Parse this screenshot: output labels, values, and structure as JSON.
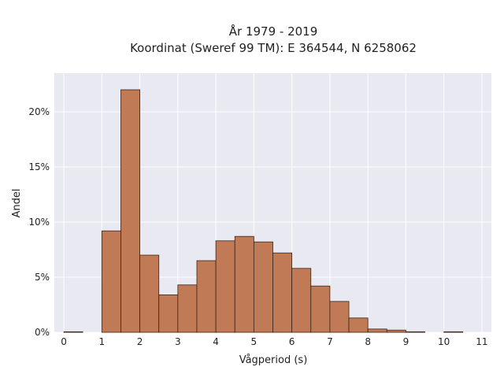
{
  "chart_data": {
    "type": "bar",
    "title": "År 1979 - 2019",
    "subtitle": "Koordinat (Sweref 99 TM): E 364544, N 6258062",
    "xlabel": "Vågperiod (s)",
    "ylabel": "Andel",
    "bin_width": 0.5,
    "bin_starts": [
      0,
      0.5,
      1,
      1.5,
      2,
      2.5,
      3,
      3.5,
      4,
      4.5,
      5,
      5.5,
      6,
      6.5,
      7,
      7.5,
      8,
      8.5,
      9,
      9.5,
      10,
      10.5,
      11
    ],
    "values": [
      0.05,
      0,
      9.2,
      22.0,
      7.0,
      3.4,
      4.3,
      6.5,
      8.3,
      8.7,
      8.2,
      7.2,
      5.8,
      4.2,
      2.8,
      1.3,
      0.3,
      0.2,
      0.05,
      0,
      0.05,
      0,
      0
    ],
    "xlim": [
      -0.25,
      11.25
    ],
    "ylim": [
      0,
      23.5
    ],
    "x_ticks": [
      "0",
      "1",
      "2",
      "3",
      "4",
      "5",
      "6",
      "7",
      "8",
      "9",
      "10",
      "11"
    ],
    "y_ticks": [
      "0%",
      "5%",
      "10%",
      "15%",
      "20%"
    ],
    "grid": true,
    "colors": {
      "bar": "#c07a55",
      "edge": "#3a2418",
      "plot_bg": "#e9e9f2",
      "grid": "#ffffff"
    }
  }
}
